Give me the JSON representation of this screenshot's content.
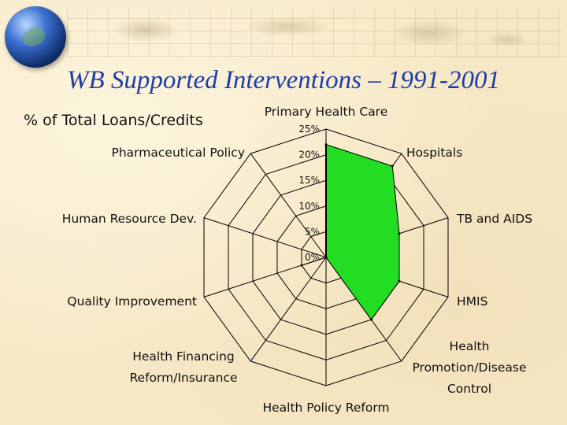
{
  "title": "WB Supported Interventions – 1991-2001",
  "chart_data": {
    "type": "radar",
    "subtitle": "% of Total Loans/Credits",
    "categories": [
      [
        "Primary Health Care"
      ],
      [
        "Hospitals"
      ],
      [
        "TB and AIDS"
      ],
      [
        "HMIS"
      ],
      [
        "Health",
        "Promotion/Disease",
        "Control"
      ],
      [
        "Health Policy Reform"
      ],
      [
        "Health Financing",
        "Reform/Insurance"
      ],
      [
        "Quality Improvement"
      ],
      [
        "Human Resource Dev."
      ],
      [
        "Pharmaceutical Policy"
      ]
    ],
    "values": [
      22,
      22,
      15,
      15,
      15,
      0,
      0,
      5,
      0,
      0
    ],
    "ticks": [
      "0%",
      "5%",
      "10%",
      "15%",
      "20%",
      "25%"
    ],
    "rlim": [
      0,
      25
    ],
    "fill_color": "#22dd22",
    "line_color": "#000000"
  }
}
